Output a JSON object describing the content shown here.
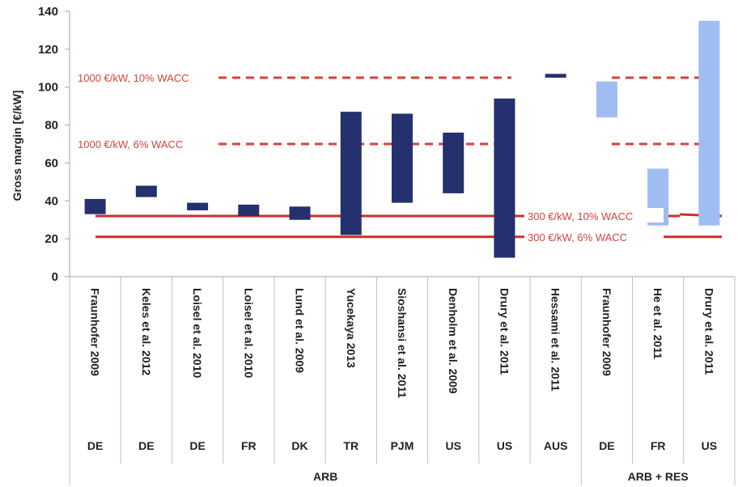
{
  "chart_data": {
    "type": "bar",
    "subtype": "floating-range",
    "ylabel": "Gross margin [€/kW]",
    "ylim": [
      0,
      140
    ],
    "yticks": [
      0,
      20,
      40,
      60,
      80,
      100,
      120,
      140
    ],
    "grid": false,
    "categories": [
      {
        "study": "Fraunhofer 2009",
        "country": "DE",
        "group": "ARB",
        "low": 33,
        "high": 41,
        "color": "#25306e"
      },
      {
        "study": "Keles et al. 2012",
        "country": "DE",
        "group": "ARB",
        "low": 42,
        "high": 48,
        "color": "#25306e"
      },
      {
        "study": "Loisel et al. 2010",
        "country": "DE",
        "group": "ARB",
        "low": 35,
        "high": 39,
        "color": "#25306e"
      },
      {
        "study": "Loisel et al. 2010",
        "country": "FR",
        "group": "ARB",
        "low": 32,
        "high": 38,
        "color": "#25306e"
      },
      {
        "study": "Lund et al. 2009",
        "country": "DK",
        "group": "ARB",
        "low": 30,
        "high": 37,
        "color": "#25306e"
      },
      {
        "study": "Yucekaya 2013",
        "country": "TR",
        "group": "ARB",
        "low": 22,
        "high": 87,
        "color": "#25306e"
      },
      {
        "study": "Sioshansi et al. 2011",
        "country": "PJM",
        "group": "ARB",
        "low": 39,
        "high": 86,
        "color": "#25306e"
      },
      {
        "study": "Denholm et al. 2009",
        "country": "US",
        "group": "ARB",
        "low": 44,
        "high": 76,
        "color": "#25306e"
      },
      {
        "study": "Drury et al. 2011",
        "country": "US",
        "group": "ARB",
        "low": 10,
        "high": 94,
        "color": "#25306e"
      },
      {
        "study": "Hessami et al. 2011",
        "country": "AUS",
        "group": "ARB",
        "low": 105,
        "high": 107,
        "color": "#25306e"
      },
      {
        "study": "Fraunhofer 2009",
        "country": "DE",
        "group": "ARB + RES",
        "low": 84,
        "high": 103,
        "color": "#9fbdf0"
      },
      {
        "study": "He et al. 2011",
        "country": "FR",
        "group": "ARB + RES",
        "low": 27,
        "high": 57,
        "color": "#9fbdf0"
      },
      {
        "study": "Drury et al. 2011",
        "country": "US",
        "group": "ARB + RES",
        "low": 27,
        "high": 135,
        "color": "#9fbdf0"
      }
    ],
    "groups": [
      {
        "label": "ARB",
        "span": 10
      },
      {
        "label": "ARB + RES",
        "span": 3
      }
    ],
    "reference_lines": [
      {
        "label": "1000 €/kW,  10% WACC",
        "value": 105,
        "style": "dashed",
        "color": "#d9423a"
      },
      {
        "label": "1000 €/kW, 6% WACC",
        "value": 70,
        "style": "dashed",
        "color": "#d9423a"
      },
      {
        "label": "300 €/kW, 10% WACC",
        "value": 32,
        "style": "solid",
        "color": "#c9302c"
      },
      {
        "label": "300 €/kW, 6% WACC",
        "value": 21,
        "style": "solid",
        "color": "#c9302c"
      }
    ]
  }
}
